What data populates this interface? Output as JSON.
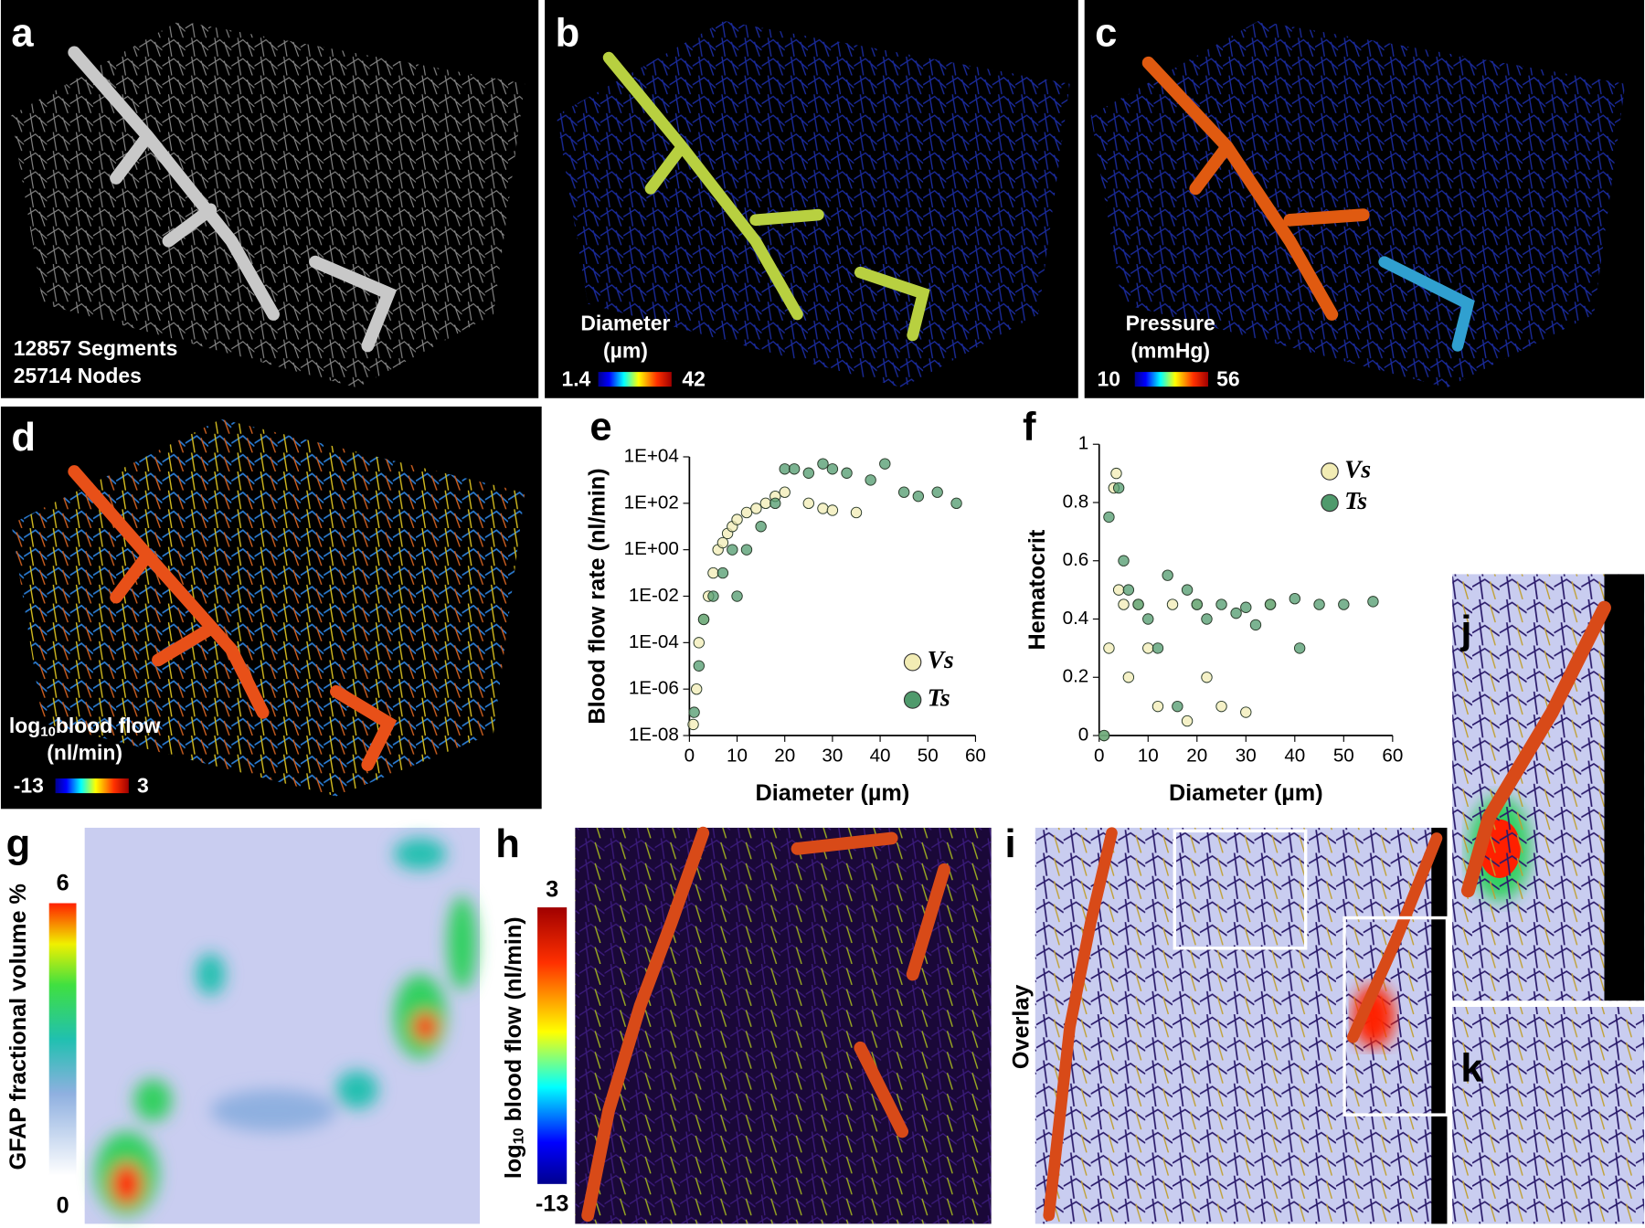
{
  "panels": {
    "a": {
      "label": "a",
      "lines": [
        "12857 Segments",
        "25714 Nodes"
      ]
    },
    "b": {
      "label": "b",
      "colorbar_title": [
        "Diameter",
        "(µm)"
      ],
      "min": "1.4",
      "max": "42"
    },
    "c": {
      "label": "c",
      "colorbar_title": [
        "Pressure",
        "(mmHg)"
      ],
      "min": "10",
      "max": "56"
    },
    "d": {
      "label": "d",
      "colorbar_title_log": "log",
      "colorbar_title_sub": "10",
      "colorbar_title_rest": "blood flow",
      "colorbar_unit": "(nl/min)",
      "min": "-13",
      "max": "3"
    },
    "e": {
      "label": "e"
    },
    "f": {
      "label": "f"
    },
    "g": {
      "label": "g",
      "colorbar_title": "GFAP fractional volume %",
      "max": "6",
      "min": "0"
    },
    "h": {
      "label": "h",
      "title_log": "log",
      "title_sub": "10",
      "title_rest": " blood flow (nl/min)",
      "max": "3",
      "min": "-13"
    },
    "i": {
      "label": "i",
      "side_title": "Overlay"
    },
    "j": {
      "label": "j"
    },
    "k": {
      "label": "k"
    }
  },
  "chart_data": [
    {
      "type": "scatter",
      "x_label": "Diameter (µm)",
      "y_label": "Blood flow rate (nl/min)",
      "log_y": true,
      "grid": false,
      "legend": "lower right",
      "xlim": [
        0,
        60
      ],
      "xticks": [
        0,
        10,
        20,
        30,
        40,
        50,
        60
      ],
      "ylim": [
        1e-08,
        10000
      ],
      "yticks": [
        {
          "value": 1e-08,
          "label": "1E-08"
        },
        {
          "value": 1e-06,
          "label": "1E-06"
        },
        {
          "value": 0.0001,
          "label": "1E-04"
        },
        {
          "value": 0.01,
          "label": "1E-02"
        },
        {
          "value": 1,
          "label": "1E+00"
        },
        {
          "value": 100,
          "label": "1E+02"
        },
        {
          "value": 10000,
          "label": "1E+04"
        }
      ],
      "series": [
        {
          "name": "Vs",
          "color": "#f2ecb4",
          "x": [
            0.8,
            1.5,
            2,
            3,
            4,
            5,
            6,
            7,
            8,
            9,
            10,
            12,
            14,
            16,
            18,
            20,
            25,
            28,
            30,
            35
          ],
          "y": [
            3e-08,
            1e-06,
            0.0001,
            0.001,
            0.01,
            0.1,
            1,
            2,
            5,
            10,
            20,
            40,
            60,
            100,
            200,
            300,
            100,
            60,
            50,
            40
          ]
        },
        {
          "name": "Ts",
          "color": "#4f9a6c",
          "x": [
            1,
            2,
            3,
            5,
            7,
            9,
            10,
            12,
            15,
            18,
            20,
            22,
            25,
            28,
            30,
            33,
            38,
            41,
            45,
            48,
            52,
            56
          ],
          "y": [
            1e-07,
            1e-05,
            0.001,
            0.01,
            0.1,
            1,
            0.01,
            1,
            10,
            100,
            3000,
            3000,
            2000,
            5000,
            3000,
            2000,
            1000,
            5000,
            300,
            200,
            300,
            100
          ]
        }
      ]
    },
    {
      "type": "scatter",
      "x_label": "Diameter (µm)",
      "y_label": "Hematocrit",
      "log_y": false,
      "grid": false,
      "legend": "upper right",
      "xlim": [
        0,
        60
      ],
      "xticks": [
        0,
        10,
        20,
        30,
        40,
        50,
        60
      ],
      "ylim": [
        0,
        1
      ],
      "yticks": [
        0,
        0.2,
        0.4,
        0.6,
        0.8,
        1
      ],
      "series": [
        {
          "name": "Vs",
          "color": "#f2ecb4",
          "x": [
            1,
            2,
            3,
            3.5,
            4,
            5,
            6,
            8,
            10,
            12,
            15,
            18,
            20,
            22,
            25,
            30,
            35
          ],
          "y": [
            0,
            0.3,
            0.85,
            0.9,
            0.5,
            0.45,
            0.2,
            0.45,
            0.3,
            0.1,
            0.45,
            0.05,
            0.45,
            0.2,
            0.1,
            0.08,
            0.45
          ]
        },
        {
          "name": "Ts",
          "color": "#4f9a6c",
          "x": [
            1,
            2,
            4,
            5,
            6,
            8,
            10,
            12,
            14,
            16,
            18,
            20,
            22,
            25,
            28,
            30,
            32,
            35,
            40,
            41,
            45,
            50,
            56
          ],
          "y": [
            0,
            0.75,
            0.85,
            0.6,
            0.5,
            0.45,
            0.4,
            0.3,
            0.55,
            0.1,
            0.5,
            0.45,
            0.4,
            0.45,
            0.42,
            0.44,
            0.38,
            0.45,
            0.47,
            0.3,
            0.45,
            0.45,
            0.46
          ]
        }
      ]
    }
  ]
}
